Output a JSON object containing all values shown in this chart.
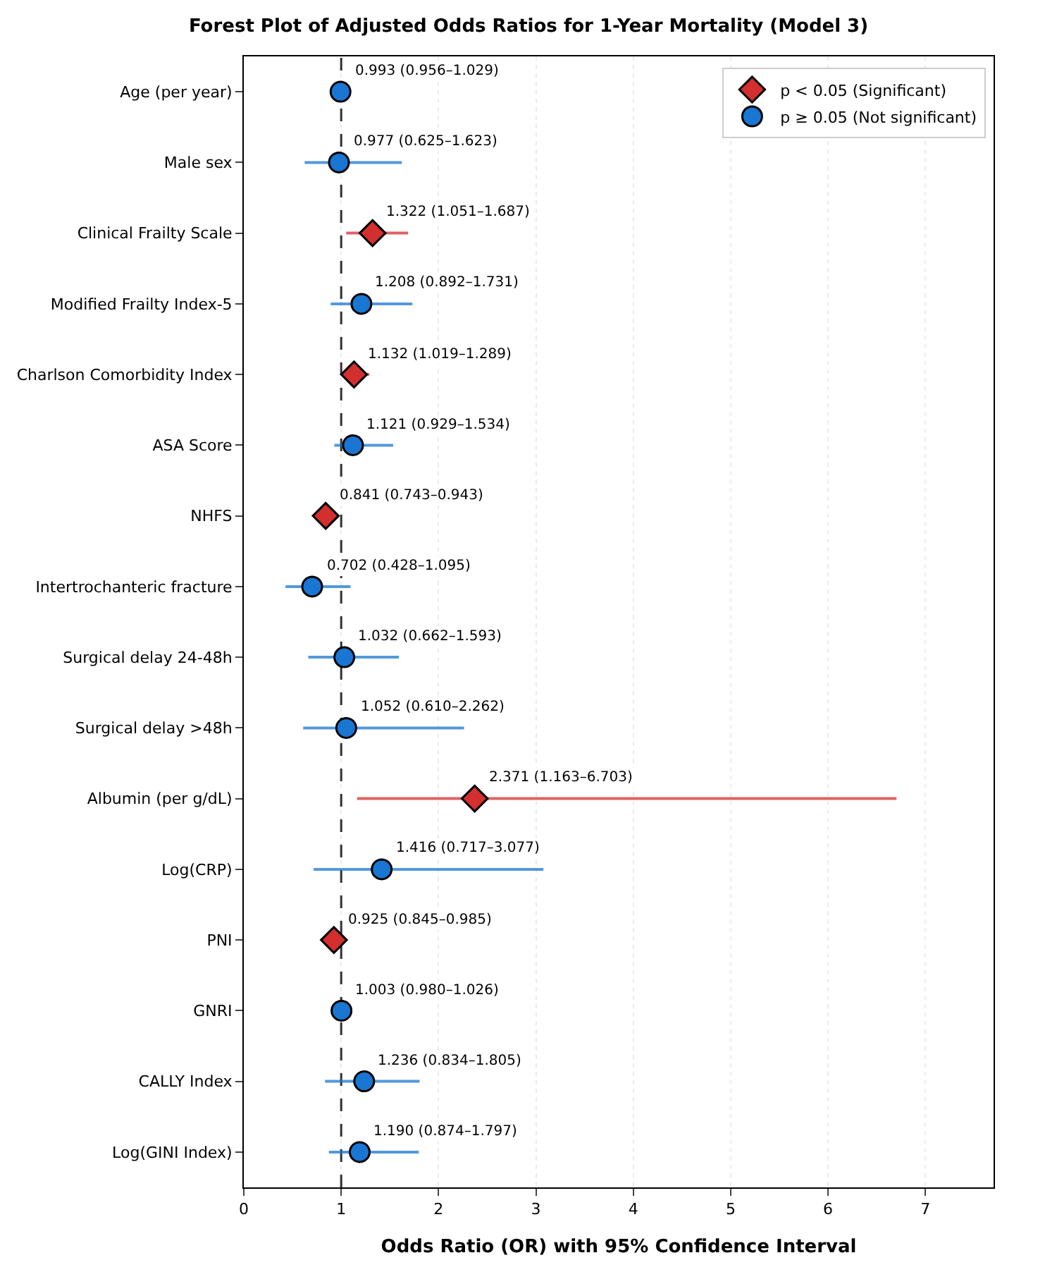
{
  "chart_data": {
    "type": "scatter",
    "orientation": "horizontal",
    "title": "Forest Plot of Adjusted Odds Ratios for 1-Year Mortality (Model 3)",
    "xlabel": "Odds Ratio (OR) with 95% Confidence Interval",
    "categories": [
      "Age (per year)",
      "Male sex",
      "Clinical Frailty Scale",
      "Modified Frailty Index-5",
      "Charlson Comorbidity Index",
      "ASA Score",
      "NHFS",
      "Intertrochanteric fracture",
      "Surgical delay 24-48h",
      "Surgical delay >48h",
      "Albumin (per g/dL)",
      "Log(CRP)",
      "PNI",
      "GNRI",
      "CALLY Index",
      "Log(GINI Index)"
    ],
    "series": [
      {
        "name": "p < 0.05 (Significant)",
        "color": "#d32f2f",
        "marker": "diamond",
        "values": [
          null,
          null,
          1.322,
          null,
          1.132,
          null,
          0.841,
          null,
          null,
          null,
          2.371,
          null,
          0.925,
          null,
          null,
          null
        ],
        "errors": [
          null,
          null,
          [
            1.051,
            1.687
          ],
          null,
          [
            1.019,
            1.289
          ],
          null,
          [
            0.743,
            0.943
          ],
          null,
          null,
          null,
          [
            1.163,
            6.703
          ],
          null,
          [
            0.845,
            0.985
          ],
          null,
          null,
          null
        ],
        "value_labels": [
          null,
          null,
          "1.322 (1.051–1.687)",
          null,
          "1.132 (1.019–1.289)",
          null,
          "0.841 (0.743–0.943)",
          null,
          null,
          null,
          "2.371 (1.163–6.703)",
          null,
          "0.925 (0.845–0.985)",
          null,
          null,
          null
        ]
      },
      {
        "name": "p ≥ 0.05 (Not significant)",
        "color": "#1976d2",
        "marker": "circle",
        "values": [
          0.993,
          0.977,
          null,
          1.208,
          null,
          1.121,
          null,
          0.702,
          1.032,
          1.052,
          null,
          1.416,
          null,
          1.003,
          1.236,
          1.19
        ],
        "errors": [
          [
            0.956,
            1.029
          ],
          [
            0.625,
            1.623
          ],
          null,
          [
            0.892,
            1.731
          ],
          null,
          [
            0.929,
            1.534
          ],
          null,
          [
            0.428,
            1.095
          ],
          [
            0.662,
            1.593
          ],
          [
            0.61,
            2.262
          ],
          null,
          [
            0.717,
            3.077
          ],
          null,
          [
            0.98,
            1.026
          ],
          [
            0.834,
            1.805
          ],
          [
            0.874,
            1.797
          ]
        ],
        "value_labels": [
          "0.993 (0.956–1.029)",
          "0.977 (0.625–1.623)",
          null,
          "1.208 (0.892–1.731)",
          null,
          "1.121 (0.929–1.534)",
          null,
          "0.702 (0.428–1.095)",
          "1.032 (0.662–1.593)",
          "1.052 (0.610–2.262)",
          null,
          "1.416 (0.717–3.077)",
          null,
          "1.003 (0.980–1.026)",
          "1.236 (0.834–1.805)",
          "1.190 (0.874–1.797)"
        ]
      }
    ],
    "xlim": [
      0,
      7.7
    ],
    "xticks": [
      0,
      1,
      2,
      3,
      4,
      5,
      6,
      7
    ],
    "grid": "x",
    "legend": "top right",
    "ref_lines": [
      {
        "axis": "x",
        "value": 1,
        "line_style": "dashed",
        "color": "#333333"
      }
    ]
  }
}
